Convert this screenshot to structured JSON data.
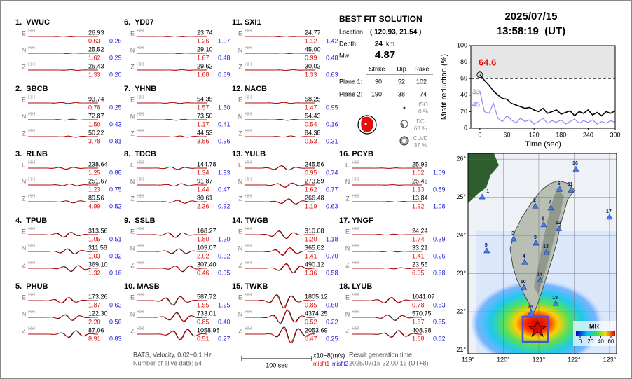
{
  "stations": [
    {
      "label": "1.  VWUC",
      "components": [
        {
          "comp": "E",
          "inst": "HH",
          "amp": "26.93",
          "misfit1": "0.63",
          "misfit2": "0.26"
        },
        {
          "comp": "N",
          "inst": "HH",
          "amp": "25.52",
          "misfit1": "1.62",
          "misfit2": "0.29"
        },
        {
          "comp": "Z",
          "inst": "HH",
          "amp": "25.43",
          "misfit1": "1.33",
          "misfit2": "0.20"
        }
      ]
    },
    {
      "label": "2.  SBCB",
      "components": [
        {
          "comp": "E",
          "inst": "HH",
          "amp": "93.74",
          "misfit1": "0.78",
          "misfit2": "0.25"
        },
        {
          "comp": "N",
          "inst": "HH",
          "amp": "72.87",
          "misfit1": "1.50",
          "misfit2": "0.43"
        },
        {
          "comp": "Z",
          "inst": "HH",
          "amp": "50.22",
          "misfit1": "3.78",
          "misfit2": "0.81"
        }
      ]
    },
    {
      "label": "3.  RLNB",
      "components": [
        {
          "comp": "E",
          "inst": "HH",
          "amp": "238.64",
          "misfit1": "1.25",
          "misfit2": "0.88"
        },
        {
          "comp": "N",
          "inst": "HH",
          "amp": "251.67",
          "misfit1": "1.23",
          "misfit2": "0.75"
        },
        {
          "comp": "Z",
          "inst": "HH",
          "amp": "89.56",
          "misfit1": "4.99",
          "misfit2": "0.52"
        }
      ]
    },
    {
      "label": "4.  TPUB",
      "components": [
        {
          "comp": "E",
          "inst": "HH",
          "amp": "313.56",
          "misfit1": "1.05",
          "misfit2": "0.51"
        },
        {
          "comp": "N",
          "inst": "HH",
          "amp": "311.58",
          "misfit1": "1.03",
          "misfit2": "0.32"
        },
        {
          "comp": "Z",
          "inst": "HH",
          "amp": "369.10",
          "misfit1": "1.32",
          "misfit2": "0.16"
        }
      ]
    },
    {
      "label": "5.  PHUB",
      "components": [
        {
          "comp": "E",
          "inst": "HH",
          "amp": "173.26",
          "misfit1": "1.87",
          "misfit2": "0.63"
        },
        {
          "comp": "N",
          "inst": "HH",
          "amp": "122.30",
          "misfit1": "2.20",
          "misfit2": "0.56"
        },
        {
          "comp": "Z",
          "inst": "HH",
          "amp": "87.06",
          "misfit1": "8.91",
          "misfit2": "0.83"
        }
      ]
    },
    {
      "label": "6.  YD07",
      "components": [
        {
          "comp": "E",
          "inst": "HH",
          "amp": "23.74",
          "misfit1": "1.26",
          "misfit2": "1.07"
        },
        {
          "comp": "N",
          "inst": "HH",
          "amp": "29.10",
          "misfit1": "1.67",
          "misfit2": "0.48"
        },
        {
          "comp": "Z",
          "inst": "HH",
          "amp": "29.62",
          "misfit1": "1.68",
          "misfit2": "0.69"
        }
      ]
    },
    {
      "label": "7.  YHNB",
      "components": [
        {
          "comp": "E",
          "inst": "HH",
          "amp": "54.35",
          "misfit1": "1.57",
          "misfit2": "1.50"
        },
        {
          "comp": "N",
          "inst": "HH",
          "amp": "73.50",
          "misfit1": "1.17",
          "misfit2": "0.41"
        },
        {
          "comp": "Z",
          "inst": "HH",
          "amp": "44.53",
          "misfit1": "3.86",
          "misfit2": "0.96"
        }
      ]
    },
    {
      "label": "8.  TDCB",
      "components": [
        {
          "comp": "E",
          "inst": "HH",
          "amp": "144.78",
          "misfit1": "1.34",
          "misfit2": "1.33"
        },
        {
          "comp": "N",
          "inst": "HH",
          "amp": "91.87",
          "misfit1": "1.44",
          "misfit2": "0.47"
        },
        {
          "comp": "Z",
          "inst": "HH",
          "amp": "80.61",
          "misfit1": "2.36",
          "misfit2": "0.92"
        }
      ]
    },
    {
      "label": "9.  SSLB",
      "components": [
        {
          "comp": "E",
          "inst": "HH",
          "amp": "168.27",
          "misfit1": "1.80",
          "misfit2": "1.20"
        },
        {
          "comp": "N",
          "inst": "HH",
          "amp": "109.07",
          "misfit1": "2.02",
          "misfit2": "0.32"
        },
        {
          "comp": "Z",
          "inst": "HH",
          "amp": "307.40",
          "misfit1": "0.46",
          "misfit2": "0.05"
        }
      ]
    },
    {
      "label": "10. MASB",
      "components": [
        {
          "comp": "E",
          "inst": "HH",
          "amp": "587.72",
          "misfit1": "1.55",
          "misfit2": "1.25"
        },
        {
          "comp": "N",
          "inst": "HH",
          "amp": "733.01",
          "misfit1": "0.85",
          "misfit2": "0.40"
        },
        {
          "comp": "Z",
          "inst": "HH",
          "amp": "1058.98",
          "misfit1": "0.51",
          "misfit2": "0.27"
        }
      ]
    },
    {
      "label": "11. SXI1",
      "components": [
        {
          "comp": "E",
          "inst": "HH",
          "amp": "24.77",
          "misfit1": "1.12",
          "misfit2": "1.42"
        },
        {
          "comp": "N",
          "inst": "HH",
          "amp": "45.00",
          "misfit1": "0.99",
          "misfit2": "0.48"
        },
        {
          "comp": "Z",
          "inst": "HH",
          "amp": "30.02",
          "misfit1": "1.33",
          "misfit2": "0.63"
        }
      ]
    },
    {
      "label": "12. NACB",
      "components": [
        {
          "comp": "E",
          "inst": "HH",
          "amp": "58.25",
          "misfit1": "1.47",
          "misfit2": "0.95"
        },
        {
          "comp": "N",
          "inst": "HH",
          "amp": "54.43",
          "misfit1": "0.54",
          "misfit2": "0.16"
        },
        {
          "comp": "Z",
          "inst": "HH",
          "amp": "84.38",
          "misfit1": "0.53",
          "misfit2": "0.31"
        }
      ]
    },
    {
      "label": "13. YULB",
      "components": [
        {
          "comp": "E",
          "inst": "HH",
          "amp": "245.56",
          "misfit1": "0.95",
          "misfit2": "0.74"
        },
        {
          "comp": "N",
          "inst": "HH",
          "amp": "273.89",
          "misfit1": "1.62",
          "misfit2": "0.77"
        },
        {
          "comp": "Z",
          "inst": "HH",
          "amp": "266.48",
          "misfit1": "1.19",
          "misfit2": "0.63"
        }
      ]
    },
    {
      "label": "14. TWGB",
      "components": [
        {
          "comp": "E",
          "inst": "HH",
          "amp": "310.08",
          "misfit1": "1.20",
          "misfit2": "1.18"
        },
        {
          "comp": "N",
          "inst": "HH",
          "amp": "365.82",
          "misfit1": "1.41",
          "misfit2": "0.70"
        },
        {
          "comp": "Z",
          "inst": "HH",
          "amp": "490.12",
          "misfit1": "1.36",
          "misfit2": "0.58"
        }
      ]
    },
    {
      "label": "15. TWKB",
      "components": [
        {
          "comp": "E",
          "inst": "HH",
          "amp": "1805.12",
          "misfit1": "0.85",
          "misfit2": "0.60"
        },
        {
          "comp": "N",
          "inst": "HH",
          "amp": "4374.25",
          "misfit1": "0.52",
          "misfit2": "0.22"
        },
        {
          "comp": "Z",
          "inst": "HH",
          "amp": "2053.69",
          "misfit1": "0.47",
          "misfit2": "0.25"
        }
      ]
    },
    {
      "label": "16. PCYB",
      "components": [
        {
          "comp": "E",
          "inst": "HH",
          "amp": "25.93",
          "misfit1": "1.02",
          "misfit2": "1.09"
        },
        {
          "comp": "N",
          "inst": "HH",
          "amp": "25.46",
          "misfit1": "1.13",
          "misfit2": "0.89"
        },
        {
          "comp": "Z",
          "inst": "HH",
          "amp": "13.84",
          "misfit1": "1.92",
          "misfit2": "1.08"
        }
      ]
    },
    {
      "label": "17. YNGF",
      "components": [
        {
          "comp": "E",
          "inst": "HH",
          "amp": "24.24",
          "misfit1": "1.74",
          "misfit2": "0.39"
        },
        {
          "comp": "N",
          "inst": "HH",
          "amp": "33.21",
          "misfit1": "1.41",
          "misfit2": "0.26"
        },
        {
          "comp": "Z",
          "inst": "HH",
          "amp": "23.55",
          "misfit1": "6.35",
          "misfit2": "0.68"
        }
      ]
    },
    {
      "label": "18. LYUB",
      "components": [
        {
          "comp": "E",
          "inst": "HH",
          "amp": "1041.07",
          "misfit1": "0.78",
          "misfit2": "0.53"
        },
        {
          "comp": "N",
          "inst": "HH",
          "amp": "570.75",
          "misfit1": "1.67",
          "misfit2": "0.65"
        },
        {
          "comp": "Z",
          "inst": "HH",
          "amp": "408.98",
          "misfit1": "1.68",
          "misfit2": "0.52"
        }
      ]
    }
  ],
  "footer": {
    "filter": "BATS, Velocity, 0.02~0.1 Hz",
    "alive": "Number of alive data: 54",
    "scale": "100 sec",
    "units": "x10−8(m/s)",
    "misfit1": "misfit1",
    "misfit2": "misfit2",
    "generated_label": "Result generation time:",
    "generated": "2025/07/15 22:00:16 (UT+8)"
  },
  "solution": {
    "title": "BEST FIT SOLUTION",
    "location_label": "Location",
    "location": "( 120.93, 21.54 )",
    "depth_label": "Depth:",
    "depth": "24",
    "depth_unit": "km",
    "mw_label": "Mw:",
    "mw": "4.87",
    "headers": [
      "Strike",
      "Dip",
      "Rake"
    ],
    "planes": [
      {
        "label": "Plane 1:",
        "values": [
          "30",
          "52",
          "102"
        ]
      },
      {
        "label": "Plane 2:",
        "values": [
          "190",
          "38",
          "74"
        ]
      }
    ],
    "components": [
      {
        "name": "ISO",
        "percent": "0 %"
      },
      {
        "name": "DC",
        "percent": "63 %"
      },
      {
        "name": "CLVD",
        "percent": "37 %"
      }
    ]
  },
  "datetime": {
    "date": "2025/07/15",
    "time": "13:58:19  (UT)"
  },
  "chart_data": {
    "type": "line",
    "xlabel": "Time (sec)",
    "ylabel": "Misfit reduction (%)",
    "x": [
      0,
      10,
      20,
      30,
      40,
      50,
      60,
      70,
      80,
      90,
      100,
      110,
      120,
      130,
      140,
      150,
      160,
      170,
      180,
      190,
      200,
      210,
      220,
      230,
      240,
      250,
      260,
      270,
      280,
      290,
      300
    ],
    "series": [
      {
        "color": "#000000",
        "values": [
          64.6,
          58,
          52,
          45,
          40,
          36,
          35,
          30,
          28,
          26,
          24,
          25,
          22,
          20,
          24,
          18,
          20,
          22,
          17,
          19,
          21,
          15,
          20,
          18,
          22,
          16,
          19,
          15,
          20,
          18,
          21
        ]
      },
      {
        "color": "#8a8af0",
        "values": [
          45,
          20,
          18,
          30,
          12,
          8,
          15,
          10,
          6,
          12,
          8,
          10,
          5,
          8,
          12,
          6,
          9,
          7,
          10,
          5,
          8,
          11,
          6,
          9,
          7,
          10,
          5,
          8,
          6,
          9,
          7
        ]
      }
    ],
    "annotations": [
      {
        "text": "64.6",
        "color": "#e01010"
      },
      {
        "text": "33",
        "color": "#aaaaaa"
      },
      {
        "text": "45",
        "color": "#9a9af5"
      }
    ],
    "threshold": 60,
    "xlim": [
      -20,
      300
    ],
    "ylim": [
      0,
      100
    ],
    "xticks": [
      0,
      60,
      120,
      180,
      240,
      300
    ],
    "yticks": [
      0,
      20,
      40,
      60,
      80,
      100
    ]
  },
  "map": {
    "xlim": [
      119,
      123.2
    ],
    "ylim": [
      20.9,
      26.15
    ],
    "xticks": [
      {
        "value": 119,
        "label": "119°"
      },
      {
        "value": 120,
        "label": "120°"
      },
      {
        "value": 121,
        "label": "121°"
      },
      {
        "value": 122,
        "label": "122°"
      },
      {
        "value": 123,
        "label": "123°"
      }
    ],
    "yticks": [
      {
        "value": 21,
        "label": "21°"
      },
      {
        "value": 22,
        "label": "22°"
      },
      {
        "value": 23,
        "label": "23°"
      },
      {
        "value": 24,
        "label": "24°"
      },
      {
        "value": 25,
        "label": "25°"
      },
      {
        "value": 26,
        "label": "26°"
      }
    ],
    "stations": [
      {
        "label": "1",
        "lon": 119.4,
        "lat": 25.01
      },
      {
        "label": "2",
        "lon": 120.9,
        "lat": 24.77
      },
      {
        "label": "3",
        "lon": 120.29,
        "lat": 23.91
      },
      {
        "label": "4",
        "lon": 120.6,
        "lat": 23.3
      },
      {
        "label": "5",
        "lon": 119.53,
        "lat": 23.6
      },
      {
        "label": "6",
        "lon": 121.59,
        "lat": 25.21
      },
      {
        "label": "7",
        "lon": 121.34,
        "lat": 24.72
      },
      {
        "label": "8",
        "lon": 121.14,
        "lat": 24.28
      },
      {
        "label": "9",
        "lon": 120.92,
        "lat": 23.8
      },
      {
        "label": "10",
        "lon": 120.58,
        "lat": 22.64
      },
      {
        "label": "11",
        "lon": 121.91,
        "lat": 25.19
      },
      {
        "label": "12",
        "lon": 121.57,
        "lat": 24.18
      },
      {
        "label": "13",
        "lon": 121.22,
        "lat": 23.56
      },
      {
        "label": "14",
        "lon": 121.04,
        "lat": 22.83
      },
      {
        "label": "15",
        "lon": 120.78,
        "lat": 21.98
      },
      {
        "label": "16",
        "lon": 122.05,
        "lat": 25.74
      },
      {
        "label": "17",
        "lon": 123,
        "lat": 24.48
      },
      {
        "label": "18",
        "lon": 121.48,
        "lat": 22.22
      }
    ],
    "colorbar": {
      "title": "MR",
      "ticks": [
        0,
        20,
        40,
        60
      ]
    }
  }
}
